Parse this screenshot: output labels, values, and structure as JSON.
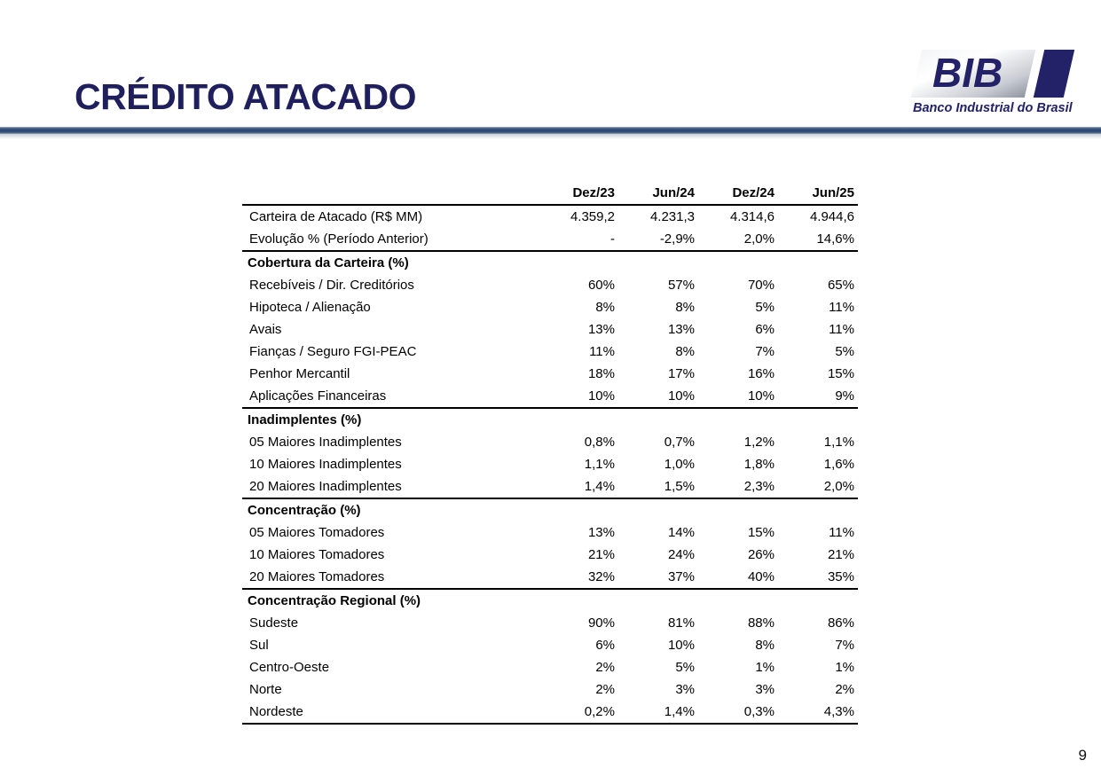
{
  "page": {
    "title": "CRÉDITO ATACADO",
    "page_number": "9"
  },
  "logo": {
    "acronym": "BIB",
    "tagline": "Banco Industrial do Brasil"
  },
  "colors": {
    "title_navy": "#201f5e",
    "logo_navy": "#232268",
    "divider_navy": "#27436e",
    "table_line": "#000000"
  },
  "table": {
    "columns": [
      "Dez/23",
      "Jun/24",
      "Dez/24",
      "Jun/25"
    ],
    "rows": [
      {
        "label": "Carteira de Atacado (R$ MM)",
        "values": [
          "4.359,2",
          "4.231,3",
          "4.314,6",
          "4.944,6"
        ]
      },
      {
        "label": "Evolução % (Período Anterior)",
        "values": [
          "-",
          "-2,9%",
          "2,0%",
          "14,6%"
        ]
      },
      {
        "label": "Cobertura da Carteira (%)",
        "section": true
      },
      {
        "label": "Recebíveis / Dir. Creditórios",
        "values": [
          "60%",
          "57%",
          "70%",
          "65%"
        ]
      },
      {
        "label": "Hipoteca / Alienação",
        "values": [
          "8%",
          "8%",
          "5%",
          "11%"
        ]
      },
      {
        "label": "Avais",
        "values": [
          "13%",
          "13%",
          "6%",
          "11%"
        ]
      },
      {
        "label": "Fianças / Seguro FGI-PEAC",
        "values": [
          "11%",
          "8%",
          "7%",
          "5%"
        ]
      },
      {
        "label": "Penhor Mercantil",
        "values": [
          "18%",
          "17%",
          "16%",
          "15%"
        ]
      },
      {
        "label": "Aplicações Financeiras",
        "values": [
          "10%",
          "10%",
          "10%",
          "9%"
        ]
      },
      {
        "label": "Inadimplentes (%)",
        "section": true
      },
      {
        "label": "05 Maiores Inadimplentes",
        "values": [
          "0,8%",
          "0,7%",
          "1,2%",
          "1,1%"
        ]
      },
      {
        "label": "10 Maiores Inadimplentes",
        "values": [
          "1,1%",
          "1,0%",
          "1,8%",
          "1,6%"
        ]
      },
      {
        "label": "20 Maiores Inadimplentes",
        "values": [
          "1,4%",
          "1,5%",
          "2,3%",
          "2,0%"
        ]
      },
      {
        "label": "Concentração (%)",
        "section": true
      },
      {
        "label": "05 Maiores Tomadores",
        "values": [
          "13%",
          "14%",
          "15%",
          "11%"
        ]
      },
      {
        "label": "10 Maiores Tomadores",
        "values": [
          "21%",
          "24%",
          "26%",
          "21%"
        ]
      },
      {
        "label": "20 Maiores Tomadores",
        "values": [
          "32%",
          "37%",
          "40%",
          "35%"
        ]
      },
      {
        "label": "Concentração Regional (%)",
        "section": true
      },
      {
        "label": "Sudeste",
        "values": [
          "90%",
          "81%",
          "88%",
          "86%"
        ]
      },
      {
        "label": "Sul",
        "values": [
          "6%",
          "10%",
          "8%",
          "7%"
        ]
      },
      {
        "label": "Centro-Oeste",
        "values": [
          "2%",
          "5%",
          "1%",
          "1%"
        ]
      },
      {
        "label": "Norte",
        "values": [
          "2%",
          "3%",
          "3%",
          "2%"
        ]
      },
      {
        "label": "Nordeste",
        "values": [
          "0,2%",
          "1,4%",
          "0,3%",
          "4,3%"
        ]
      }
    ]
  }
}
